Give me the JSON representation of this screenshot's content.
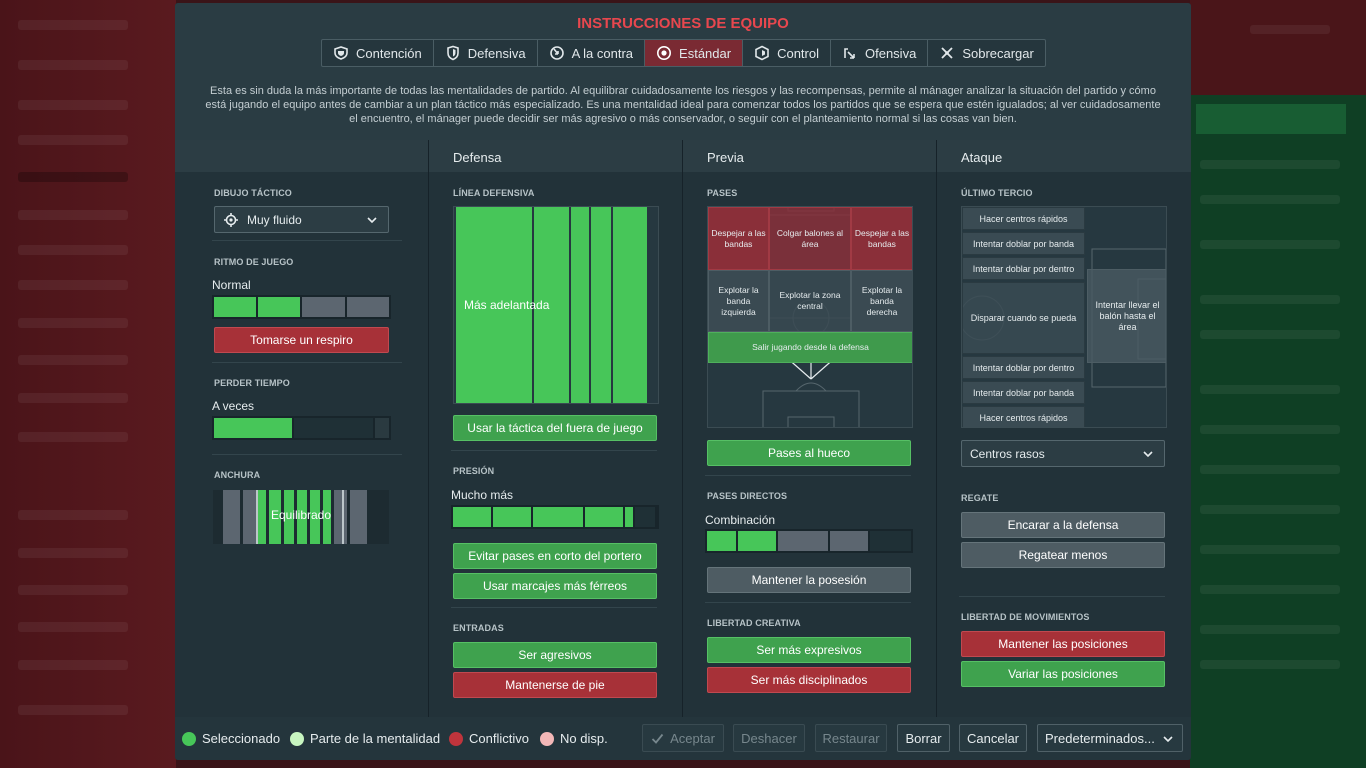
{
  "modal": {
    "title": "INSTRUCCIONES DE EQUIPO",
    "tabs": [
      {
        "label": "Contención",
        "icon": "shield-wide-icon"
      },
      {
        "label": "Defensiva",
        "icon": "shield-icon"
      },
      {
        "label": "A la contra",
        "icon": "counter-arrow-icon"
      },
      {
        "label": "Estándar",
        "icon": "balanced-icon",
        "active": true
      },
      {
        "label": "Control",
        "icon": "control-icon"
      },
      {
        "label": "Ofensiva",
        "icon": "attack-arrow-icon"
      },
      {
        "label": "Sobrecargar",
        "icon": "overload-icon"
      }
    ],
    "description": "Esta es sin duda la más importante de todas las mentalidades de partido. Al equilibrar cuidadosamente los riesgos y las recompensas, permite al mánager analizar la situación del partido y cómo está jugando el equipo antes de cambiar a un plan táctico más especializado. Es una mentalidad ideal para comenzar todos los partidos que se espera que estén igualados; al ver cuidadosamente el encuentro, el mánager puede decidir ser más agresivo o más conservador, o seguir con el planteamiento normal si las cosas van bien."
  },
  "general": {
    "dibujo_label": "DIBUJO TÁCTICO",
    "dibujo_value": "Muy fluido",
    "ritmo_label": "RITMO DE JUEGO",
    "ritmo_value": "Normal",
    "ritmo_level": 0.45,
    "ritmo_btn": "Tomarse un respiro",
    "perder_label": "PERDER TIEMPO",
    "perder_value": "A veces",
    "perder_level": 0.45,
    "anchura_label": "ANCHURA",
    "anchura_value": "Equilibrado"
  },
  "defensa": {
    "header": "Defensa",
    "linea_label": "LÍNEA DEFENSIVA",
    "linea_value": "Más adelantada",
    "fuera_juego": "Usar la táctica del fuera de juego",
    "presion_label": "PRESIÓN",
    "presion_value": "Mucho más",
    "presion_level": 0.9,
    "btn_portero": "Evitar pases en corto del portero",
    "btn_marcajes": "Usar marcajes más férreos",
    "entradas_label": "ENTRADAS",
    "btn_agresivos": "Ser agresivos",
    "btn_pie": "Mantenerse de pie"
  },
  "previa": {
    "header": "Previa",
    "pases_label": "PASES",
    "cells": [
      "Despejar a las bandas",
      "Colgar balones al área",
      "Despejar a las bandas",
      "Explotar la banda izquierda",
      "Explotar la zona central",
      "Explotar la banda derecha"
    ],
    "salir": "Salir jugando desde la defensa",
    "btn_hueco": "Pases al hueco",
    "directos_label": "PASES DIRECTOS",
    "directos_value": "Combinación",
    "directos_level": 0.35,
    "btn_posesion": "Mantener la posesión",
    "libertad_label": "LIBERTAD CREATIVA",
    "btn_expresivos": "Ser más expresivos",
    "btn_disciplinados": "Ser más disciplinados"
  },
  "ataque": {
    "header": "Ataque",
    "ultimo_label": "ÚLTIMO TERCIO",
    "items": [
      "Hacer centros rápidos",
      "Intentar doblar por banda",
      "Intentar doblar por dentro",
      "Disparar cuando se pueda",
      "Intentar doblar por dentro",
      "Intentar doblar por banda",
      "Hacer centros rápidos"
    ],
    "area": "Intentar llevar el balón hasta el área",
    "centros_value": "Centros rasos",
    "regate_label": "REGATE",
    "btn_encarar": "Encarar a la defensa",
    "btn_regatear": "Regatear menos",
    "mov_label": "LIBERTAD DE MOVIMIENTOS",
    "btn_mantener": "Mantener las posiciones",
    "btn_variar": "Variar las posiciones"
  },
  "footer": {
    "legend": [
      {
        "label": "Seleccionado",
        "color": "#47c659"
      },
      {
        "label": "Parte de la mentalidad",
        "color": "#c7f5c0"
      },
      {
        "label": "Conflictivo",
        "color": "#c0343c"
      },
      {
        "label": "No disp.",
        "color": "#f2b7b7"
      }
    ],
    "aceptar": "Aceptar",
    "deshacer": "Deshacer",
    "restaurar": "Restaurar",
    "borrar": "Borrar",
    "cancelar": "Cancelar",
    "predeterminados": "Predeterminados..."
  }
}
